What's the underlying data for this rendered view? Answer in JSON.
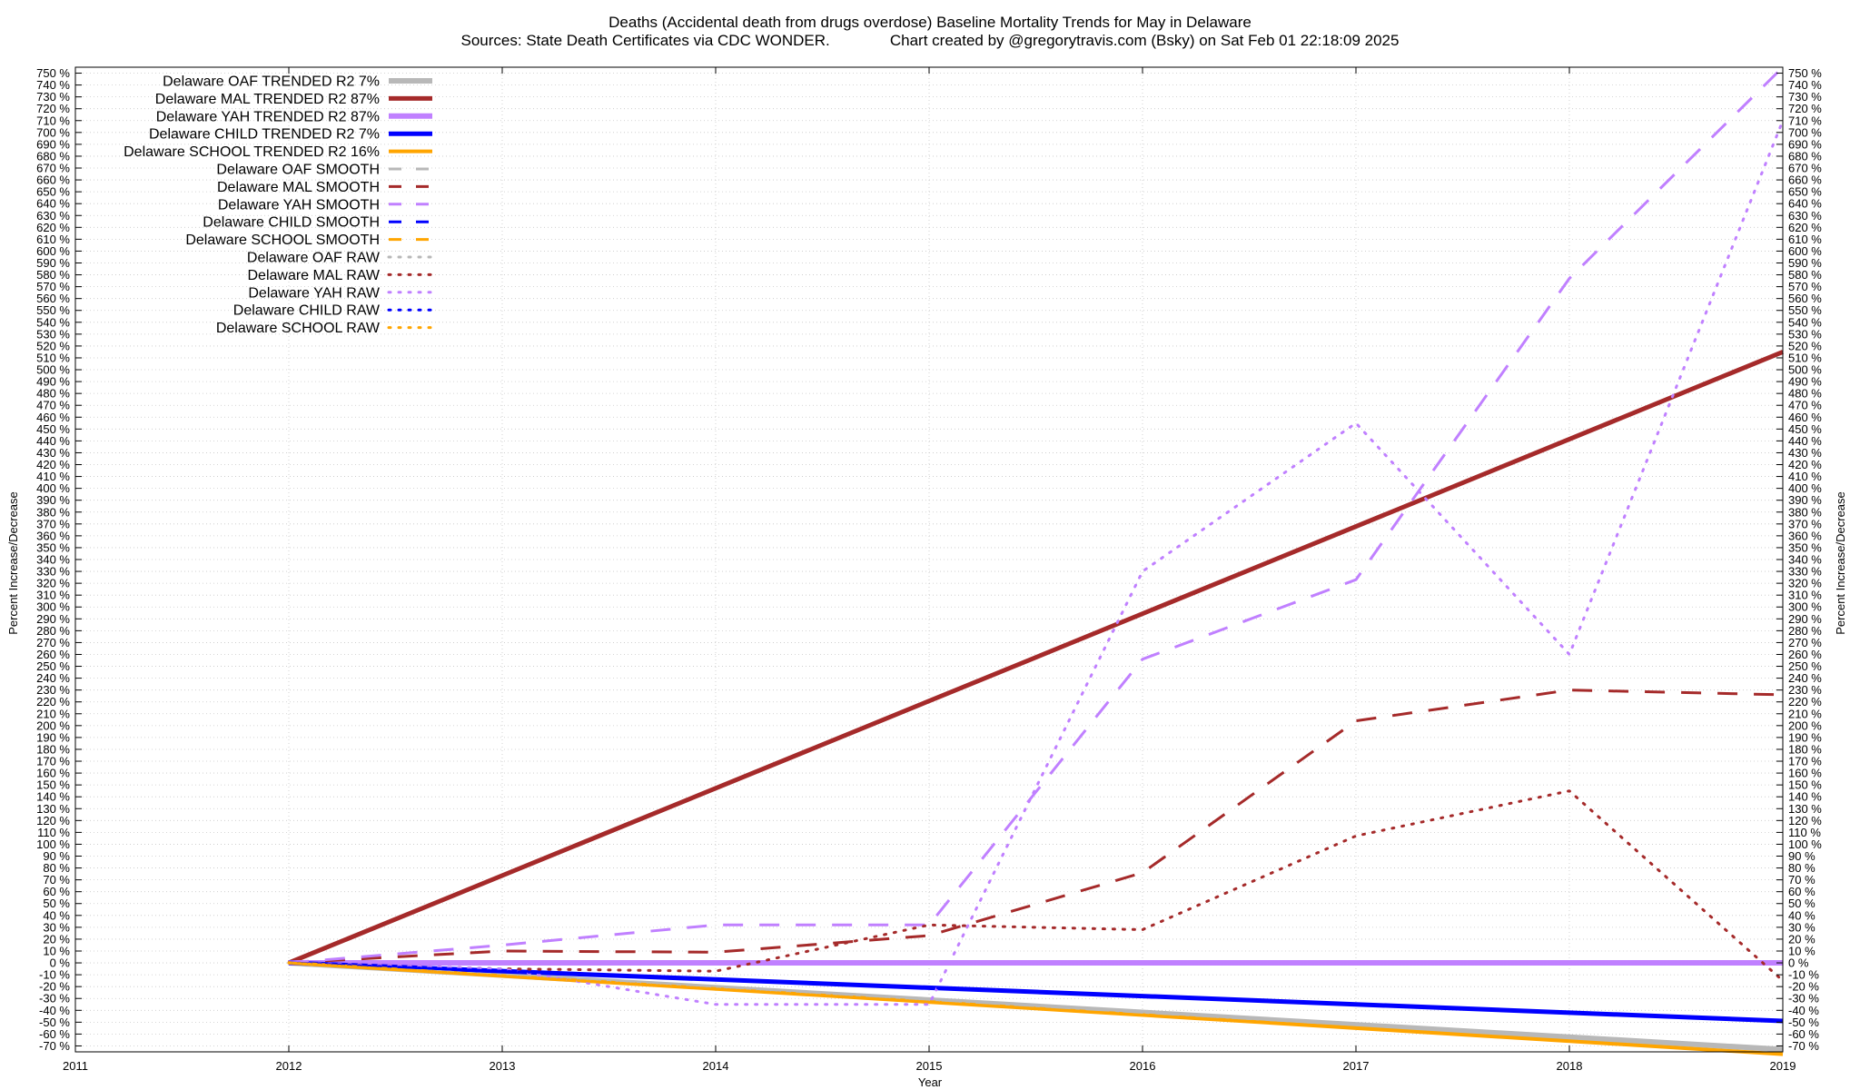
{
  "chart_data": {
    "type": "line",
    "title": "Deaths (Accidental death from drugs overdose)  Baseline Mortality Trends for May in Delaware",
    "subtitle": "Sources: State Death Certificates via CDC WONDER.              Chart created by @gregorytravis.com (Bsky) on Sat Feb 01 22:18:09 2025",
    "xlabel": "Year",
    "ylabel": "Percent Increase/Decrease",
    "y2label": "Percent Increase/Decrease",
    "xlim": [
      2011,
      2019
    ],
    "ylim": [
      -75,
      755
    ],
    "x_ticks": [
      2011,
      2012,
      2013,
      2014,
      2015,
      2016,
      2017,
      2018,
      2019
    ],
    "y_tick_step": 10,
    "y_tick_format": "{v} %",
    "grid": true,
    "legend_position": "top-left",
    "series": [
      {
        "name": "Delaware OAF TRENDED R2  7%",
        "style": "solid",
        "color": "#b8b8b8",
        "width": 6,
        "x": [
          2012,
          2019
        ],
        "y": [
          0,
          -73
        ]
      },
      {
        "name": "Delaware MAL TRENDED R2  87%",
        "style": "solid",
        "color": "#a52a2a",
        "width": 5,
        "x": [
          2012,
          2019
        ],
        "y": [
          0,
          515
        ]
      },
      {
        "name": "Delaware YAH TRENDED R2  87%",
        "style": "solid",
        "color": "#c080ff",
        "width": 6,
        "x": [
          2012,
          2019
        ],
        "y": [
          0,
          0
        ]
      },
      {
        "name": "Delaware CHILD TRENDED R2  7%",
        "style": "solid",
        "color": "#0000ff",
        "width": 5,
        "x": [
          2012,
          2019
        ],
        "y": [
          0,
          -49
        ]
      },
      {
        "name": "Delaware SCHOOL TRENDED R2  16%",
        "style": "solid",
        "color": "#ffa500",
        "width": 4,
        "x": [
          2012,
          2019
        ],
        "y": [
          0,
          -77
        ]
      },
      {
        "name": "Delaware OAF SMOOTH",
        "style": "dashed",
        "color": "#b8b8b8",
        "width": 3,
        "x": [
          2012,
          2019
        ],
        "y": [
          0,
          -73
        ]
      },
      {
        "name": "Delaware MAL SMOOTH",
        "style": "dashed",
        "color": "#a52a2a",
        "width": 3,
        "x": [
          2012,
          2013,
          2014,
          2015,
          2016,
          2017,
          2018,
          2019
        ],
        "y": [
          0,
          10,
          9,
          23,
          76,
          204,
          230,
          226
        ]
      },
      {
        "name": "Delaware YAH SMOOTH",
        "style": "dashed",
        "color": "#c080ff",
        "width": 3,
        "x": [
          2012,
          2013,
          2014,
          2015,
          2016,
          2017,
          2018,
          2019
        ],
        "y": [
          0,
          15,
          32,
          32,
          256,
          323,
          577,
          755
        ]
      },
      {
        "name": "Delaware CHILD SMOOTH",
        "style": "dashed",
        "color": "#0000ff",
        "width": 3,
        "x": [
          2012,
          2019
        ],
        "y": [
          0,
          -49
        ]
      },
      {
        "name": "Delaware SCHOOL SMOOTH",
        "style": "dashed",
        "color": "#ffa500",
        "width": 3,
        "x": [
          2012,
          2019
        ],
        "y": [
          0,
          -77
        ]
      },
      {
        "name": "Delaware OAF RAW",
        "style": "dotted",
        "color": "#b8b8b8",
        "width": 3,
        "x": [
          2012,
          2019
        ],
        "y": [
          0,
          -73
        ]
      },
      {
        "name": "Delaware MAL RAW",
        "style": "dotted",
        "color": "#a52a2a",
        "width": 3,
        "x": [
          2012,
          2013,
          2014,
          2015,
          2016,
          2017,
          2018,
          2019
        ],
        "y": [
          0,
          -5,
          -7,
          32,
          28,
          107,
          145,
          -15
        ]
      },
      {
        "name": "Delaware YAH RAW",
        "style": "dotted",
        "color": "#c080ff",
        "width": 3,
        "x": [
          2012,
          2013,
          2014,
          2015,
          2016,
          2017,
          2018,
          2019
        ],
        "y": [
          0,
          -5,
          -35,
          -35,
          330,
          455,
          260,
          710
        ]
      },
      {
        "name": "Delaware CHILD RAW",
        "style": "dotted",
        "color": "#0000ff",
        "width": 3,
        "x": [
          2012,
          2019
        ],
        "y": [
          0,
          -49
        ]
      },
      {
        "name": "Delaware SCHOOL RAW",
        "style": "dotted",
        "color": "#ffa500",
        "width": 3,
        "x": [
          2012,
          2019
        ],
        "y": [
          0,
          -77
        ]
      }
    ]
  }
}
